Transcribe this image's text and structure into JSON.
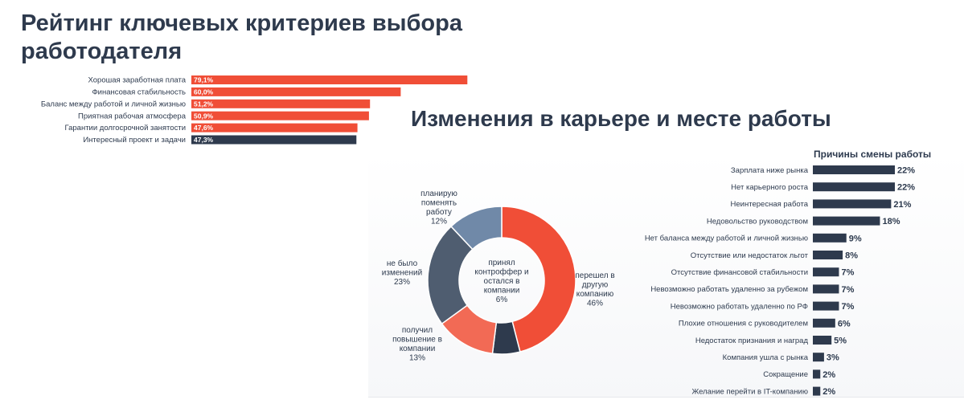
{
  "title_ranking": "Рейтинг ключевых критериев выбора работодателя",
  "title_changes": "Изменения в карьере и месте работы",
  "colors": {
    "red": "#f04e37",
    "navy": "#2e3a4d",
    "slate": "#4f5d70",
    "blue_grey": "#7089a8",
    "salmon": "#f26a55"
  },
  "chart_data": [
    {
      "type": "bar",
      "orientation": "horizontal",
      "categories": [
        "Хорошая заработная плата",
        "Финансовая стабильность",
        "Баланс между работой и личной жизнью",
        "Приятная рабочая атмосфера",
        "Гарантии долгосрочной занятости",
        "Интересный проект и задачи"
      ],
      "values": [
        79.1,
        60.0,
        51.2,
        50.9,
        47.6,
        47.3
      ],
      "value_labels": [
        "79,1%",
        "60,0%",
        "51,2%",
        "50,9%",
        "47,6%",
        "47,3%"
      ],
      "bar_colors": [
        "#f04e37",
        "#f04e37",
        "#f04e37",
        "#f04e37",
        "#f04e37",
        "#2e3a4d"
      ],
      "xlim": [
        0,
        100
      ]
    },
    {
      "type": "pie",
      "donut": true,
      "center_label": "принял контроффер и остался в компании 6%",
      "slices": [
        {
          "label": "перешел в другую компанию",
          "value": 46,
          "value_label": "46%",
          "color": "#f04e37"
        },
        {
          "label": "принял контроффер и остался в компании",
          "value": 6,
          "value_label": "6%",
          "color": "#2e3a4d"
        },
        {
          "label": "получил повышение в компании",
          "value": 13,
          "value_label": "13%",
          "color": "#f26a55"
        },
        {
          "label": "не было изменений",
          "value": 23,
          "value_label": "23%",
          "color": "#4f5d70"
        },
        {
          "label": "планирую поменять работу",
          "value": 12,
          "value_label": "12%",
          "color": "#7089a8"
        }
      ]
    },
    {
      "type": "bar",
      "orientation": "horizontal",
      "title": "Причины смены работы",
      "categories": [
        "Зарплата ниже рынка",
        "Нет карьерного роста",
        "Неинтересная работа",
        "Недовольство руководством",
        "Нет баланса между работой и личной жизнью",
        "Отсутствие или недостаток льгот",
        "Отсутствие финансовой стабильности",
        "Невозможно работать удаленно за рубежом",
        "Невозможно работать удаленно по РФ",
        "Плохие отношения с руководителем",
        "Недостаток признания и наград",
        "Компания ушла с рынка",
        "Сокращение",
        "Желание перейти в IT-компанию"
      ],
      "values": [
        22,
        22,
        21,
        18,
        9,
        8,
        7,
        7,
        7,
        6,
        5,
        3,
        2,
        2
      ],
      "value_labels": [
        "22%",
        "22%",
        "21%",
        "18%",
        "9%",
        "8%",
        "7%",
        "7%",
        "7%",
        "6%",
        "5%",
        "3%",
        "2%",
        "2%"
      ],
      "bar_color": "#2e3a4d",
      "xlim": [
        0,
        22
      ]
    }
  ]
}
